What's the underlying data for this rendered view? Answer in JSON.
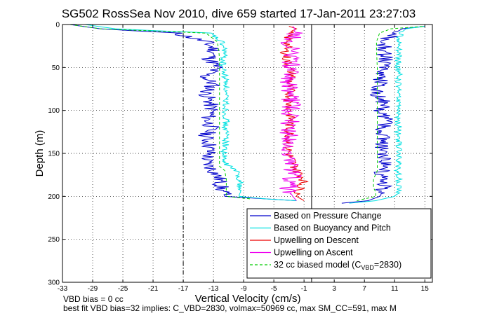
{
  "chart_data": {
    "type": "line",
    "title": "SG502 RossSea Nov 2010, dive 659 started 17-Jan-2011 23:27:03",
    "xlabel": "Vertical Velocity (cm/s)",
    "ylabel": "Depth (m)",
    "xlim": [
      -33,
      16
    ],
    "ylim": [
      0,
      300
    ],
    "y_reversed": true,
    "grid": true,
    "legend_position": "bottom-right",
    "x_ticks": [
      "-33",
      "-29",
      "-25",
      "-21",
      "-17",
      "-13",
      "-9",
      "-5",
      "-1",
      "3",
      "7",
      "11",
      "15"
    ],
    "y_ticks": [
      "0",
      "50",
      "100",
      "150",
      "200",
      "250",
      "300"
    ],
    "vertical_lines": [
      {
        "x": -17,
        "style": "dash-dot"
      },
      {
        "x": 0,
        "style": "solid"
      }
    ],
    "series": [
      {
        "name": "Based on Pressure Change",
        "color": "#0000cc",
        "descent": {
          "depth": [
            0,
            5,
            10,
            20,
            30,
            40,
            50,
            60,
            70,
            80,
            90,
            100,
            110,
            120,
            130,
            140,
            150,
            160,
            170,
            180,
            190,
            200,
            203,
            205
          ],
          "w": [
            -32,
            -28,
            -18,
            -14,
            -12.8,
            -13.5,
            -12.5,
            -14.2,
            -13,
            -14,
            -13.5,
            -13.2,
            -13.8,
            -13.3,
            -14,
            -13.5,
            -13.6,
            -14,
            -13,
            -12.2,
            -12,
            -11.5,
            -6,
            -2
          ]
        },
        "ascent": {
          "depth": [
            208,
            205,
            200,
            195,
            190,
            180,
            170,
            160,
            150,
            140,
            130,
            120,
            110,
            100,
            90,
            80,
            70,
            60,
            50,
            40,
            30,
            20,
            10,
            5,
            2
          ],
          "w": [
            4,
            7.5,
            9,
            9.5,
            9.5,
            9.5,
            9.3,
            9.6,
            9.2,
            9.4,
            9.5,
            9.6,
            9.8,
            9.3,
            9.5,
            8.6,
            9.2,
            9.3,
            9.4,
            9.7,
            9.5,
            9.6,
            11,
            12,
            15
          ]
        }
      },
      {
        "name": "Based on Buoyancy and Pitch",
        "color": "#00e0e0",
        "descent": {
          "depth": [
            0,
            5,
            10,
            20,
            30,
            40,
            50,
            60,
            70,
            80,
            90,
            100,
            110,
            120,
            130,
            140,
            150,
            160,
            170,
            180,
            190,
            200,
            203,
            205
          ],
          "w": [
            -30,
            -26,
            -13.5,
            -12,
            -11.5,
            -11.7,
            -11.8,
            -11.5,
            -11.2,
            -11.5,
            -11.3,
            -11.4,
            -11.3,
            -11.5,
            -11.2,
            -11.4,
            -11.6,
            -11.7,
            -10,
            -9.5,
            -9.5,
            -9.6,
            -6,
            -2
          ]
        },
        "ascent": {
          "depth": [
            208,
            205,
            200,
            195,
            190,
            180,
            170,
            160,
            150,
            140,
            130,
            120,
            110,
            100,
            90,
            80,
            70,
            60,
            50,
            40,
            30,
            20,
            10,
            5,
            2
          ],
          "w": [
            5,
            8.5,
            11,
            11.5,
            11.5,
            11.5,
            11.4,
            11.5,
            11.6,
            11.5,
            11.4,
            11.5,
            11.4,
            11.3,
            11.5,
            11.4,
            11.5,
            11.6,
            11.5,
            11.4,
            11.6,
            11.5,
            11.8,
            12.5,
            15
          ]
        }
      },
      {
        "name": "Upwelling on Descent",
        "color": "#ee0000",
        "depth": [
          2,
          5,
          10,
          20,
          30,
          40,
          50,
          60,
          70,
          80,
          90,
          100,
          110,
          120,
          130,
          140,
          150,
          160,
          170,
          180,
          190,
          200,
          205
        ],
        "w": [
          -3,
          -2,
          -3.2,
          -3,
          -3.5,
          -3.3,
          -3,
          -2.5,
          -3,
          -2.8,
          -3,
          -2.9,
          -2.8,
          -3,
          -2.9,
          -3.1,
          -3,
          -2.5,
          -2,
          -1,
          -1.5,
          -2,
          -1
        ]
      },
      {
        "name": "Upwelling on Ascent",
        "color": "#ee00ee",
        "depth": [
          205,
          200,
          195,
          190,
          180,
          170,
          160,
          150,
          140,
          130,
          120,
          110,
          100,
          90,
          80,
          70,
          60,
          50,
          40,
          30,
          20,
          10,
          5,
          2
        ],
        "w": [
          -2,
          -2.5,
          -2.8,
          -3,
          -2.8,
          -2.5,
          -2.7,
          -2.9,
          -2.8,
          -3,
          -2.8,
          -2.9,
          -2.8,
          -2.7,
          -2.9,
          -3,
          -2.8,
          -2.7,
          -2.8,
          -2.6,
          -2.9,
          -2.3,
          -2.2,
          -2.5
        ]
      },
      {
        "name": "32 cc biased model (C_VBD=2830)",
        "color": "#00cc00",
        "descent": {
          "depth": [
            0,
            5,
            10,
            20,
            30,
            40,
            50,
            100,
            150,
            165,
            170,
            180,
            190,
            200,
            203
          ],
          "w": [
            -32,
            -28,
            -14,
            -12.5,
            -12.3,
            -12.2,
            -12.2,
            -12.2,
            -12.2,
            -12.2,
            -11.5,
            -11.3,
            -11.3,
            -11.3,
            -8
          ]
        },
        "ascent": {
          "depth": [
            205,
            200,
            195,
            190,
            180,
            170,
            160,
            150,
            100,
            50,
            30,
            20,
            10,
            5,
            2
          ],
          "w": [
            6,
            8.5,
            8.5,
            8.2,
            8.2,
            8.7,
            8.7,
            8.7,
            8.7,
            8.7,
            8.6,
            8.6,
            9,
            10.5,
            15
          ]
        }
      }
    ],
    "legend_entries": [
      {
        "label": "Based on Pressure Change",
        "color": "#0000cc",
        "dashed": false
      },
      {
        "label": "Based on Buoyancy and Pitch",
        "color": "#00e0e0",
        "dashed": false
      },
      {
        "label": "Upwelling on Descent",
        "color": "#ee0000",
        "dashed": false
      },
      {
        "label": "Upwelling on Ascent",
        "color": "#ee00ee",
        "dashed": false
      }
    ],
    "legend_model": {
      "prefix": "32 cc biased model (C",
      "sub": "VBD",
      "suffix": "=2830)",
      "color": "#00cc00",
      "dashed": true
    }
  },
  "notes": {
    "line1": "VBD bias = 0 cc",
    "line2": "best fit VBD bias=32 implies: C_VBD=2830, volmax=50969 cc, max SM_CC=591, max M"
  }
}
